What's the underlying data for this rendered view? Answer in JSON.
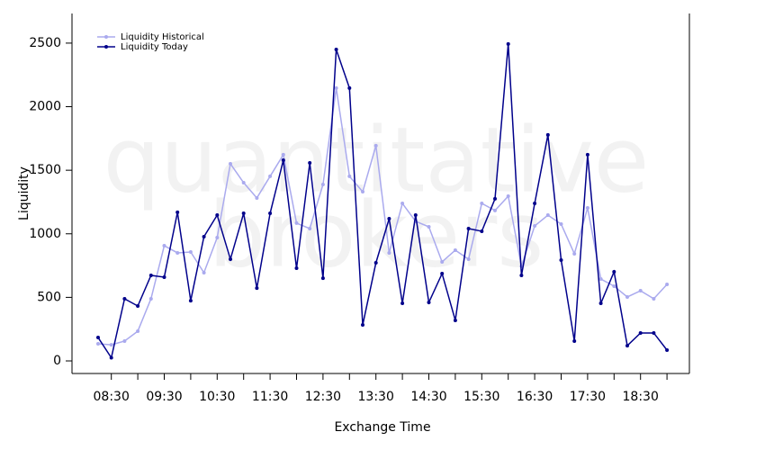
{
  "chart_data": {
    "type": "line",
    "watermark": [
      "quantitative",
      "brokers"
    ],
    "xlabel": "Exchange Time",
    "ylabel": "Liquidity",
    "categories": [
      null,
      "08:30",
      null,
      null,
      null,
      "09:30",
      null,
      null,
      null,
      "10:30",
      null,
      null,
      null,
      "11:30",
      null,
      null,
      null,
      "12:30",
      null,
      null,
      null,
      "13:30",
      null,
      null,
      null,
      "14:30",
      null,
      null,
      null,
      "15:30",
      null,
      null,
      null,
      "16:30",
      null,
      null,
      null,
      "17:30",
      null,
      null,
      null,
      "18:30",
      null,
      null
    ],
    "series": [
      {
        "name": "Liquidity Historical",
        "color": "#aaaaee",
        "values": [
          135,
          127,
          156,
          234,
          489,
          906,
          850,
          857,
          694,
          970,
          1551,
          1402,
          1282,
          1452,
          1622,
          1084,
          1041,
          1388,
          2146,
          1452,
          1331,
          1693,
          850,
          1239,
          1098,
          1055,
          779,
          871,
          800,
          1239,
          1183,
          1296,
          744,
          1062,
          1147,
          1076,
          843,
          1204,
          644,
          588,
          503,
          552,
          489,
          602
        ]
      },
      {
        "name": "Liquidity Today",
        "color": "#00008b",
        "values": [
          184,
          25,
          489,
          432,
          673,
          659,
          1169,
          474,
          977,
          1147,
          800,
          1161,
          573,
          1161,
          1579,
          729,
          1558,
          651,
          2450,
          2146,
          283,
          772,
          1119,
          453,
          1147,
          460,
          687,
          319,
          1041,
          1020,
          1275,
          2493,
          673,
          1239,
          1778,
          793,
          156,
          1622,
          453,
          701,
          120,
          220,
          220,
          85
        ]
      }
    ],
    "ylim": [
      -99,
      2733
    ],
    "yticks": [
      0,
      500,
      1000,
      1500,
      2000,
      2500
    ],
    "legend": "top-left"
  }
}
